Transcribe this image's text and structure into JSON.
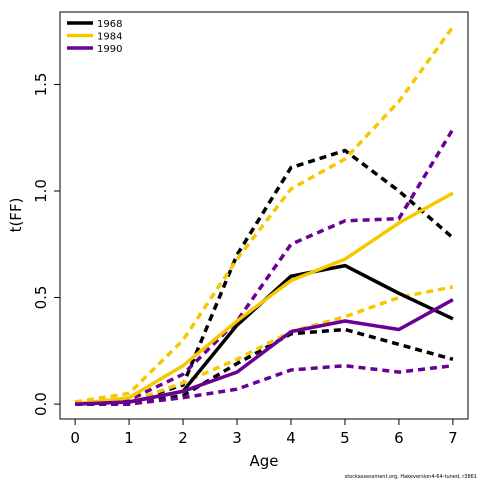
{
  "chart_data": {
    "type": "line",
    "xlabel": "Age",
    "ylabel": "t(FF)",
    "xlim": [
      -0.28,
      7.28
    ],
    "ylim": [
      -0.07,
      1.84
    ],
    "x_ticks": [
      0,
      1,
      2,
      3,
      4,
      5,
      6,
      7
    ],
    "x_tick_labels": [
      "0",
      "1",
      "2",
      "3",
      "4",
      "5",
      "6",
      "7"
    ],
    "y_ticks": [
      0.0,
      0.5,
      1.0,
      1.5
    ],
    "y_tick_labels": [
      "0.0",
      "0.5",
      "1.0",
      "1.5"
    ],
    "x": [
      0,
      1,
      2,
      3,
      4,
      5,
      6,
      7
    ],
    "legend_position": "top-left",
    "grid": false,
    "series": [
      {
        "name": "1968",
        "color": "#000000",
        "values": [
          0.0,
          0.01,
          0.06,
          0.37,
          0.6,
          0.65,
          0.52,
          0.4
        ],
        "lower": [
          0.0,
          0.0,
          0.04,
          0.19,
          0.33,
          0.35,
          0.28,
          0.21
        ],
        "upper": [
          0.0,
          0.01,
          0.09,
          0.7,
          1.11,
          1.19,
          1.0,
          0.78
        ]
      },
      {
        "name": "1984",
        "color": "#F5C800",
        "values": [
          0.0,
          0.03,
          0.18,
          0.39,
          0.58,
          0.68,
          0.85,
          0.99
        ],
        "lower": [
          0.0,
          0.01,
          0.1,
          0.21,
          0.34,
          0.41,
          0.5,
          0.55
        ],
        "upper": [
          0.01,
          0.05,
          0.3,
          0.68,
          1.01,
          1.15,
          1.42,
          1.77
        ]
      },
      {
        "name": "1990",
        "color": "#6A0096",
        "values": [
          0.0,
          0.01,
          0.06,
          0.15,
          0.34,
          0.39,
          0.35,
          0.49
        ],
        "lower": [
          0.0,
          0.0,
          0.03,
          0.07,
          0.16,
          0.18,
          0.15,
          0.18
        ],
        "upper": [
          0.0,
          0.02,
          0.14,
          0.39,
          0.75,
          0.86,
          0.87,
          1.29
        ]
      }
    ],
    "footnote": "stockassessment.org, Hakeversion4-64-tuned, r3861"
  }
}
